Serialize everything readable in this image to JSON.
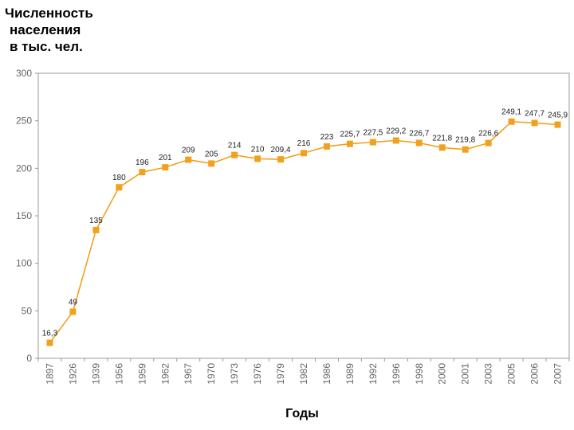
{
  "chart_data": {
    "type": "line",
    "ylabel_lines": [
      "Численность",
      "населения",
      "в тыс. чел."
    ],
    "xlabel": "Годы",
    "ylim": [
      0,
      300
    ],
    "yticks": [
      0,
      50,
      100,
      150,
      200,
      250,
      300
    ],
    "grid": false,
    "legend": "none",
    "colors": {
      "series": "#f39c12",
      "marker": "#f0a21e",
      "axis": "#999999"
    },
    "categories": [
      "1897",
      "1926",
      "1939",
      "1956",
      "1959",
      "1962",
      "1967",
      "1970",
      "1973",
      "1976",
      "1979",
      "1982",
      "1986",
      "1989",
      "1992",
      "1996",
      "1998",
      "2000",
      "2001",
      "2003",
      "2005",
      "2006",
      "2007"
    ],
    "values": [
      16.3,
      49,
      135,
      180,
      196,
      201,
      209,
      205,
      214,
      210,
      209.4,
      216,
      223,
      225.7,
      227.5,
      229.2,
      226.7,
      221.8,
      219.8,
      226.6,
      249.1,
      247.7,
      245.9
    ],
    "labels": [
      "16,3",
      "49",
      "135",
      "180",
      "196",
      "201",
      "209",
      "205",
      "214",
      "210",
      "209,4",
      "216",
      "223",
      "225,7",
      "227,5",
      "229,2",
      "226,7",
      "221,8",
      "219,8",
      "226,6",
      "249,1",
      "247,7",
      "245,9"
    ]
  }
}
